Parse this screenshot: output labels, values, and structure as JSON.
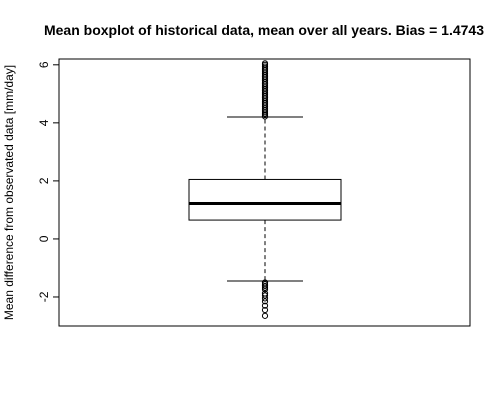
{
  "chart_data": {
    "type": "boxplot",
    "title": "Mean boxplot of historical data, mean over all years. Bias = 1.4743",
    "xlabel": "",
    "ylabel": "Mean difference from observated data [mm/day]",
    "ylim": [
      -3.0,
      6.2
    ],
    "yticks": [
      -2,
      0,
      2,
      4,
      6
    ],
    "yticklabels": [
      "-2",
      "0",
      "2",
      "4",
      "6"
    ],
    "grid": false,
    "box": {
      "whisker_low": -1.45,
      "q1": 0.65,
      "median": 1.22,
      "q3": 2.05,
      "whisker_high": 4.2
    },
    "outliers_high": [
      4.22,
      4.27,
      4.32,
      4.38,
      4.44,
      4.5,
      4.56,
      4.62,
      4.68,
      4.74,
      4.8,
      4.86,
      4.92,
      4.98,
      5.04,
      5.1,
      5.16,
      5.22,
      5.28,
      5.34,
      5.4,
      5.46,
      5.52,
      5.58,
      5.64,
      5.7,
      5.76,
      5.82,
      5.88,
      5.94,
      6.0,
      6.05
    ],
    "outliers_low": [
      -1.5,
      -1.56,
      -1.62,
      -1.68,
      -1.74,
      -1.88,
      -1.95,
      -2.05,
      -2.15,
      -2.3,
      -2.45,
      -2.65
    ]
  }
}
